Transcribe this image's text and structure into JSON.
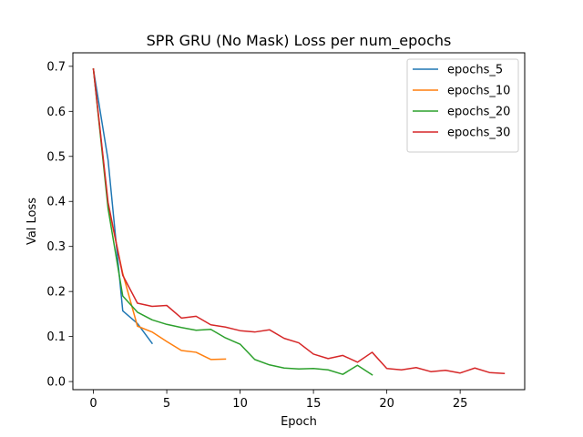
{
  "chart_data": {
    "type": "line",
    "title": "SPR GRU (No Mask) Loss per num_epochs",
    "xlabel": "Epoch",
    "ylabel": "Val Loss",
    "xlim": [
      -1.4,
      29.4
    ],
    "ylim": [
      -0.018,
      0.73
    ],
    "xticks": [
      0,
      5,
      10,
      15,
      20,
      25
    ],
    "yticks": [
      0.0,
      0.1,
      0.2,
      0.3,
      0.4,
      0.5,
      0.6,
      0.7
    ],
    "ytick_labels": [
      "0.0",
      "0.1",
      "0.2",
      "0.3",
      "0.4",
      "0.5",
      "0.6",
      "0.7"
    ],
    "grid": false,
    "legend_position": "top-right",
    "series": [
      {
        "name": "epochs_5",
        "color": "#1f77b4",
        "x": [
          0,
          1,
          2,
          3,
          4
        ],
        "y": [
          0.693,
          0.492,
          0.157,
          0.129,
          0.085
        ]
      },
      {
        "name": "epochs_10",
        "color": "#ff7f0e",
        "x": [
          0,
          1,
          2,
          3,
          4,
          5,
          6,
          7,
          8,
          9
        ],
        "y": [
          0.694,
          0.392,
          0.24,
          0.123,
          0.11,
          0.089,
          0.069,
          0.065,
          0.049,
          0.05
        ]
      },
      {
        "name": "epochs_20",
        "color": "#2ca02c",
        "x": [
          0,
          1,
          2,
          3,
          4,
          5,
          6,
          7,
          8,
          9,
          10,
          11,
          12,
          13,
          14,
          15,
          16,
          17,
          18,
          19
        ],
        "y": [
          0.694,
          0.384,
          0.19,
          0.154,
          0.137,
          0.127,
          0.12,
          0.114,
          0.116,
          0.097,
          0.083,
          0.049,
          0.037,
          0.03,
          0.028,
          0.029,
          0.026,
          0.016,
          0.036,
          0.015
        ]
      },
      {
        "name": "epochs_30",
        "color": "#d62728",
        "x": [
          0,
          1,
          2,
          3,
          4,
          5,
          6,
          7,
          8,
          9,
          10,
          11,
          12,
          13,
          14,
          15,
          16,
          17,
          18,
          19,
          20,
          21,
          22,
          23,
          24,
          25,
          26,
          27,
          28
        ],
        "y": [
          0.694,
          0.398,
          0.236,
          0.174,
          0.167,
          0.169,
          0.141,
          0.145,
          0.126,
          0.121,
          0.113,
          0.11,
          0.115,
          0.096,
          0.086,
          0.061,
          0.051,
          0.058,
          0.043,
          0.065,
          0.029,
          0.026,
          0.031,
          0.022,
          0.025,
          0.019,
          0.03,
          0.02,
          0.018
        ]
      }
    ]
  }
}
